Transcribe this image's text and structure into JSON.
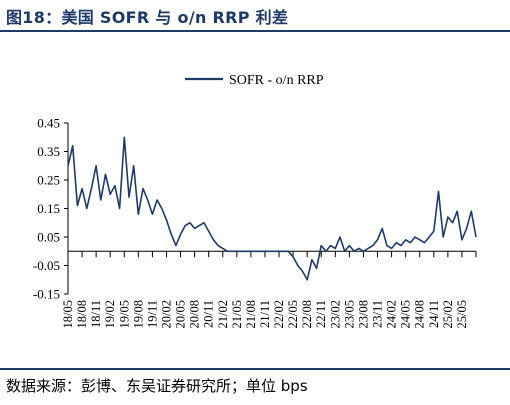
{
  "header": {
    "title": "图18：美国 SOFR 与 o/n RRP 利差"
  },
  "footer": {
    "source": "数据来源：彭博、东吴证券研究所；单位 bps"
  },
  "chart_data": {
    "type": "line",
    "legend": "top-center",
    "grid": false,
    "ylim": [
      -0.15,
      0.45
    ],
    "yticks": [
      "0.45",
      "0.35",
      "0.25",
      "0.15",
      "0.05",
      "-0.05",
      "-0.15"
    ],
    "ytick_values": [
      0.45,
      0.35,
      0.25,
      0.15,
      0.05,
      -0.05,
      -0.15
    ],
    "xlim": [
      "2018-05",
      "2025-08"
    ],
    "x_ticks": [
      "18/05",
      "18/08",
      "18/11",
      "19/02",
      "19/05",
      "19/08",
      "19/11",
      "20/02",
      "20/05",
      "20/08",
      "20/11",
      "21/02",
      "21/05",
      "21/08",
      "21/11",
      "22/02",
      "22/05",
      "22/08",
      "22/11",
      "23/02",
      "23/05",
      "23/08",
      "23/11",
      "24/02",
      "24/05",
      "24/08",
      "24/11",
      "25/02",
      "25/05"
    ],
    "series": [
      {
        "name": "SOFR - o/n RRP",
        "color": "#1f3a66",
        "x": [
          "2018-05",
          "2018-06",
          "2018-07",
          "2018-08",
          "2018-09",
          "2018-10",
          "2018-11",
          "2018-12",
          "2019-01",
          "2019-02",
          "2019-03",
          "2019-04",
          "2019-05",
          "2019-06",
          "2019-07",
          "2019-08",
          "2019-09",
          "2019-10",
          "2019-11",
          "2019-12",
          "2020-01",
          "2020-02",
          "2020-03",
          "2020-04",
          "2020-05",
          "2020-06",
          "2020-07",
          "2020-08",
          "2020-09",
          "2020-10",
          "2020-11",
          "2020-12",
          "2021-01",
          "2021-02",
          "2021-03",
          "2021-04",
          "2021-05",
          "2021-06",
          "2021-07",
          "2021-08",
          "2021-09",
          "2021-10",
          "2021-11",
          "2021-12",
          "2022-01",
          "2022-02",
          "2022-03",
          "2022-04",
          "2022-05",
          "2022-06",
          "2022-07",
          "2022-08",
          "2022-09",
          "2022-10",
          "2022-11",
          "2022-12",
          "2023-01",
          "2023-02",
          "2023-03",
          "2023-04",
          "2023-05",
          "2023-06",
          "2023-07",
          "2023-08",
          "2023-09",
          "2023-10",
          "2023-11",
          "2023-12",
          "2024-01",
          "2024-02",
          "2024-03",
          "2024-04",
          "2024-05",
          "2024-06",
          "2024-07",
          "2024-08",
          "2024-09",
          "2024-10",
          "2024-11",
          "2024-12",
          "2025-01",
          "2025-02",
          "2025-03",
          "2025-04",
          "2025-05",
          "2025-06",
          "2025-07",
          "2025-08"
        ],
        "values": [
          0.3,
          0.37,
          0.16,
          0.22,
          0.15,
          0.22,
          0.3,
          0.18,
          0.27,
          0.2,
          0.23,
          0.15,
          0.4,
          0.19,
          0.3,
          0.13,
          0.22,
          0.18,
          0.13,
          0.18,
          0.15,
          0.11,
          0.06,
          0.02,
          0.06,
          0.09,
          0.1,
          0.08,
          0.09,
          0.1,
          0.07,
          0.04,
          0.02,
          0.01,
          0.0,
          0.0,
          0.0,
          0.0,
          0.0,
          0.0,
          0.0,
          0.0,
          0.0,
          0.0,
          0.0,
          0.0,
          0.0,
          0.0,
          -0.02,
          -0.05,
          -0.07,
          -0.1,
          -0.03,
          -0.06,
          0.02,
          0.0,
          0.02,
          0.01,
          0.05,
          0.0,
          0.02,
          0.0,
          0.01,
          0.0,
          0.01,
          0.02,
          0.04,
          0.08,
          0.02,
          0.01,
          0.03,
          0.02,
          0.04,
          0.03,
          0.05,
          0.04,
          0.03,
          0.05,
          0.07,
          0.21,
          0.05,
          0.12,
          0.1,
          0.14,
          0.04,
          0.08,
          0.14,
          0.05
        ]
      }
    ]
  }
}
